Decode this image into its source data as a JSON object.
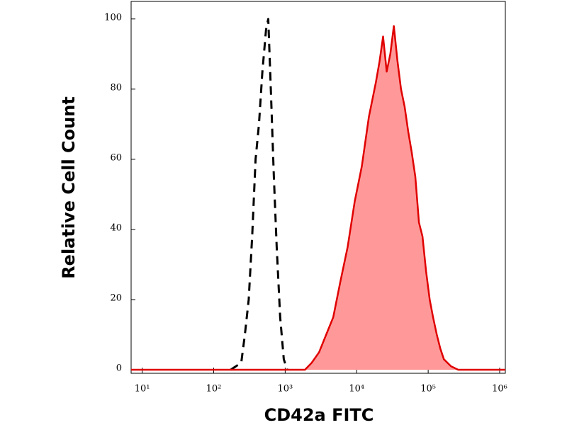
{
  "chart_data": {
    "type": "histogram-overlay",
    "xlabel": "CD42a FITC",
    "ylabel": "Relative Cell Count",
    "xscale": "log",
    "xlim": [
      7,
      1200000
    ],
    "xticks": [
      {
        "value": 10,
        "label": "10¹"
      },
      {
        "value": 100,
        "label": "10²"
      },
      {
        "value": 1000,
        "label": "10³"
      },
      {
        "value": 10000,
        "label": "10⁴"
      },
      {
        "value": 100000,
        "label": "10⁵"
      },
      {
        "value": 1000000,
        "label": "10⁶"
      }
    ],
    "ylim": [
      -1,
      105
    ],
    "yticks": [
      0,
      20,
      40,
      60,
      80,
      100
    ],
    "series": [
      {
        "color": "#000000",
        "style": "dashed",
        "x": [
          173,
          243,
          273,
          309,
          345,
          385,
          430,
          480,
          540,
          580,
          630,
          695,
          760,
          850,
          955,
          1070
        ],
        "values": [
          0,
          2,
          10,
          20,
          38,
          60,
          70,
          85,
          97,
          100,
          80,
          55,
          35,
          15,
          3,
          0
        ]
      },
      {
        "color": "#e00000",
        "fill": "#ff9999",
        "style": "filled",
        "x": [
          7,
          1890,
          2350,
          2980,
          3740,
          4700,
          5900,
          7480,
          9400,
          11800,
          14800,
          18600,
          20900,
          23400,
          26300,
          29500,
          33100,
          37200,
          41700,
          46800,
          52500,
          58900,
          66100,
          74200,
          83300,
          93500,
          105000,
          117000,
          132000,
          148000,
          166000,
          209000,
          263000,
          1200000
        ],
        "values": [
          0,
          0,
          2,
          5,
          10,
          15,
          25,
          35,
          48,
          58,
          72,
          82,
          88,
          95,
          85,
          90,
          98,
          88,
          80,
          75,
          68,
          62,
          55,
          42,
          38,
          28,
          20,
          15,
          10,
          6,
          3,
          1,
          0,
          0
        ]
      }
    ]
  }
}
